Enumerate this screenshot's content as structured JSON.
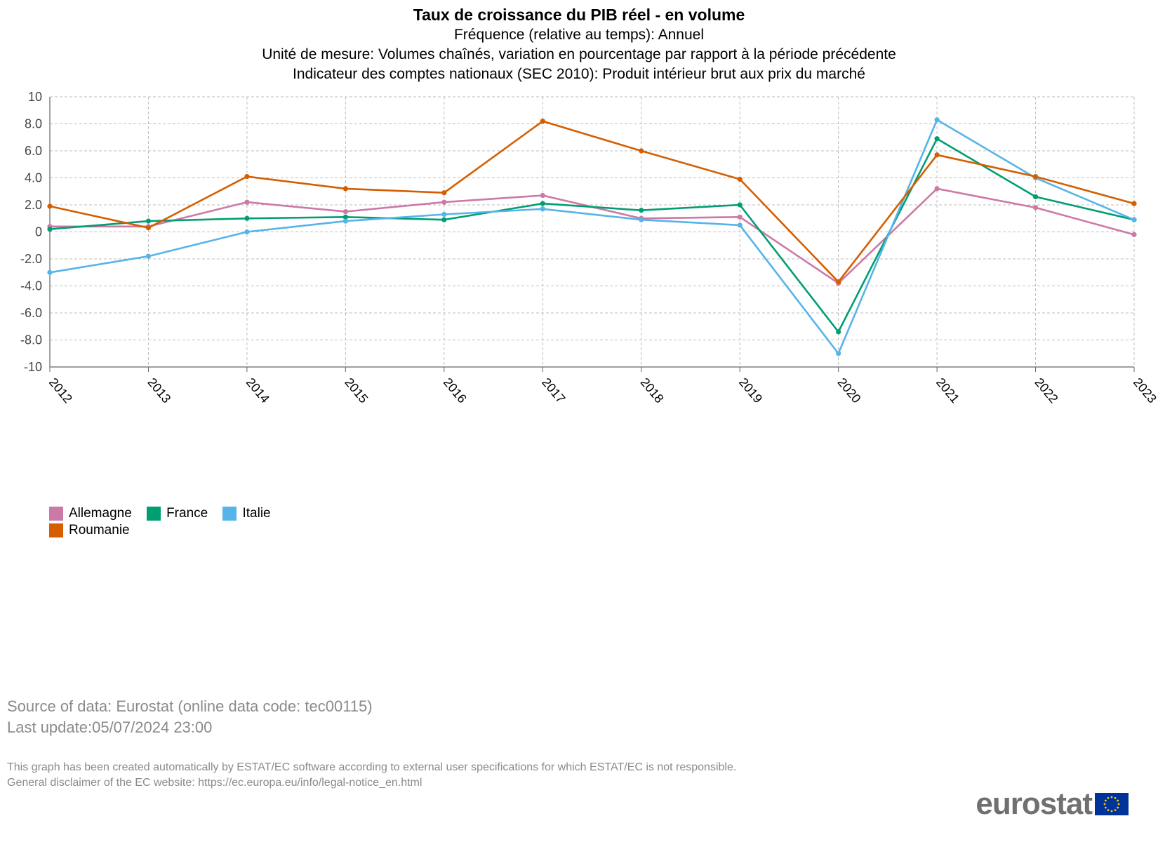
{
  "chart_data": {
    "type": "line",
    "title": "Taux de croissance du PIB réel - en volume",
    "subtitles": [
      "Fréquence (relative au temps): Annuel",
      "Unité de mesure: Volumes chaînés, variation en pourcentage par rapport à la période précédente",
      "Indicateur des comptes nationaux (SEC 2010): Produit intérieur brut aux prix du marché"
    ],
    "categories": [
      "2012",
      "2013",
      "2014",
      "2015",
      "2016",
      "2017",
      "2018",
      "2019",
      "2020",
      "2021",
      "2022",
      "2023"
    ],
    "ylim": [
      -10,
      10
    ],
    "yticks": [
      10,
      8,
      6,
      4,
      2,
      0,
      -2,
      -4,
      -6,
      -8,
      -10
    ],
    "ytick_labels": [
      "10",
      "8.0",
      "6.0",
      "4.0",
      "2.0",
      "0",
      "-2.0",
      "-4.0",
      "-6.0",
      "-8.0",
      "-10"
    ],
    "grid": true,
    "legend_position": "bottom-left",
    "series": [
      {
        "name": "Allemagne",
        "color": "#cc79a7",
        "values": [
          0.4,
          0.4,
          2.2,
          1.5,
          2.2,
          2.7,
          1.0,
          1.1,
          -3.8,
          3.2,
          1.8,
          -0.2
        ]
      },
      {
        "name": "France",
        "color": "#009e73",
        "values": [
          0.2,
          0.8,
          1.0,
          1.1,
          0.9,
          2.1,
          1.6,
          2.0,
          -7.4,
          6.9,
          2.6,
          0.9
        ]
      },
      {
        "name": "Italie",
        "color": "#56b4e9",
        "values": [
          -3.0,
          -1.8,
          0.0,
          0.8,
          1.3,
          1.7,
          0.9,
          0.5,
          -9.0,
          8.3,
          4.0,
          0.9
        ]
      },
      {
        "name": "Roumanie",
        "color": "#d55e00",
        "values": [
          1.9,
          0.3,
          4.1,
          3.2,
          2.9,
          8.2,
          6.0,
          3.9,
          -3.7,
          5.7,
          4.1,
          2.1
        ]
      }
    ]
  },
  "source": {
    "line1": "Source of data: Eurostat (online data code: tec00115)",
    "line2": "Last update:05/07/2024 23:00"
  },
  "disclaimer": {
    "line1": "This graph has been created automatically by ESTAT/EC software according to external user specifications for which ESTAT/EC is not responsible.",
    "line2": "General disclaimer of the EC website: https://ec.europa.eu/info/legal-notice_en.html"
  },
  "logo": {
    "text": "eurostat",
    "flag_icon": "eu-flag-icon",
    "flag_color": "#003399",
    "star_color": "#ffcc00"
  }
}
